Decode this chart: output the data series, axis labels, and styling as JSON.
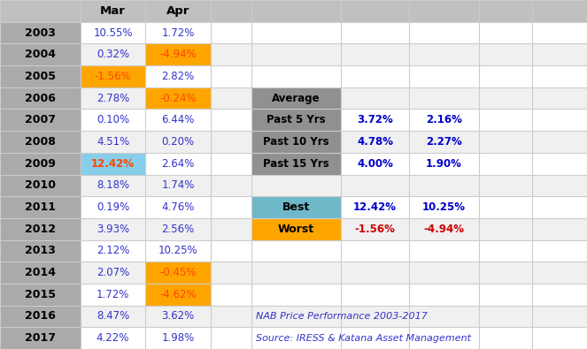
{
  "years": [
    "2003",
    "2004",
    "2005",
    "2006",
    "2007",
    "2008",
    "2009",
    "2010",
    "2011",
    "2012",
    "2013",
    "2014",
    "2015",
    "2016",
    "2017"
  ],
  "mar": [
    "10.55%",
    "0.32%",
    "-1.56%",
    "2.78%",
    "0.10%",
    "4.51%",
    "12.42%",
    "8.18%",
    "0.19%",
    "3.93%",
    "2.12%",
    "2.07%",
    "1.72%",
    "8.47%",
    "4.22%"
  ],
  "apr": [
    "1.72%",
    "-4.94%",
    "2.82%",
    "-0.24%",
    "6.44%",
    "0.20%",
    "2.64%",
    "1.74%",
    "4.76%",
    "2.56%",
    "10.25%",
    "-0.45%",
    "-4.62%",
    "3.62%",
    "1.98%"
  ],
  "mar_bg": [
    null,
    null,
    "#FFA500",
    null,
    null,
    null,
    "#87CEEB",
    null,
    null,
    null,
    null,
    null,
    null,
    null,
    null
  ],
  "apr_bg": [
    null,
    "#FFA500",
    null,
    "#FFA500",
    null,
    null,
    null,
    null,
    null,
    null,
    null,
    "#FFA500",
    "#FFA500",
    null,
    null
  ],
  "mar_bold": [
    false,
    false,
    false,
    false,
    false,
    false,
    true,
    false,
    false,
    false,
    false,
    false,
    false,
    false,
    false
  ],
  "mar_color": [
    "#3333CC",
    "#3333CC",
    "#FF4500",
    "#3333CC",
    "#3333CC",
    "#3333CC",
    "#FF4500",
    "#3333CC",
    "#3333CC",
    "#3333CC",
    "#3333CC",
    "#3333CC",
    "#3333CC",
    "#3333CC",
    "#3333CC"
  ],
  "apr_color": [
    "#3333CC",
    "#FF4500",
    "#3333CC",
    "#FF4500",
    "#3333CC",
    "#3333CC",
    "#3333CC",
    "#3333CC",
    "#3333CC",
    "#3333CC",
    "#3333CC",
    "#FF4500",
    "#FF4500",
    "#3333CC",
    "#3333CC"
  ],
  "avg_label_rows": [
    3,
    4,
    5,
    6
  ],
  "avg_labels": [
    "Average",
    "Past 5 Yrs",
    "Past 10 Yrs",
    "Past 15 Yrs"
  ],
  "avg_mar": [
    "",
    "3.72%",
    "4.78%",
    "4.00%"
  ],
  "avg_apr": [
    "",
    "2.16%",
    "2.27%",
    "1.90%"
  ],
  "best_row": 8,
  "best_label": "Best",
  "best_mar": "12.42%",
  "best_apr": "10.25%",
  "worst_row": 9,
  "worst_label": "Worst",
  "worst_mar": "-1.56%",
  "worst_apr": "-4.94%",
  "note1": "NAB Price Performance 2003-2017",
  "note2": "Source: IRESS & Katana Asset Management",
  "note_row1": 13,
  "note_row2": 14,
  "year_col_bg": "#AAAAAA",
  "header_bg": "#C0C0C0",
  "avg_section_bg": "#909090",
  "best_bg": "#6FB8C9",
  "worst_bg": "#FFA500",
  "row_bg_even": "#F0F0F0",
  "row_bg_odd": "#FFFFFF",
  "right_bg_even": "#F0F0F0",
  "right_bg_odd": "#FFFFFF",
  "grid_color": "#CCCCCC",
  "n_cols": 7,
  "n_data_rows": 15
}
